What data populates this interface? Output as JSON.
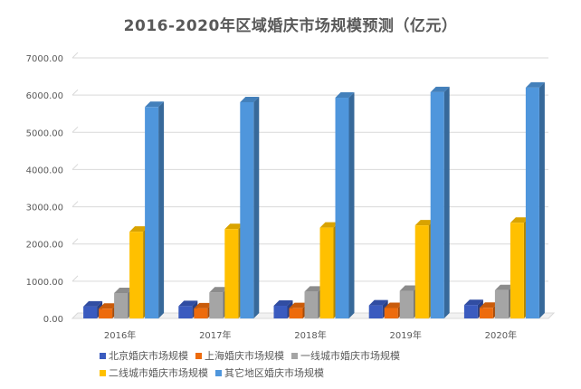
{
  "title": "2016-2020年区域婚庆市场规模预测（亿元）",
  "chart_data": {
    "type": "bar",
    "categories": [
      "2016年",
      "2017年",
      "2018年",
      "2019年",
      "2020年"
    ],
    "series": [
      {
        "name": "北京婚庆市场规模",
        "color": "#3a5bbf",
        "values": [
          320,
          330,
          340,
          350,
          360
        ]
      },
      {
        "name": "上海婚庆市场规模",
        "color": "#ed6b0c",
        "values": [
          260,
          270,
          275,
          280,
          285
        ]
      },
      {
        "name": "一线城市婚庆市场规模",
        "color": "#a5a5a5",
        "values": [
          680,
          700,
          720,
          740,
          760
        ]
      },
      {
        "name": "二线城市婚庆市场规模",
        "color": "#ffc000",
        "values": [
          2330,
          2400,
          2440,
          2500,
          2570
        ]
      },
      {
        "name": "其它地区婚庆市场规模",
        "color": "#4f96dc",
        "values": [
          5680,
          5810,
          5930,
          6080,
          6200
        ]
      }
    ],
    "ylim": [
      0,
      7000
    ],
    "yticks": [
      "0.00",
      "1000.00",
      "2000.00",
      "3000.00",
      "4000.00",
      "5000.00",
      "6000.00",
      "7000.00"
    ],
    "grid": true,
    "legend_position": "bottom"
  }
}
